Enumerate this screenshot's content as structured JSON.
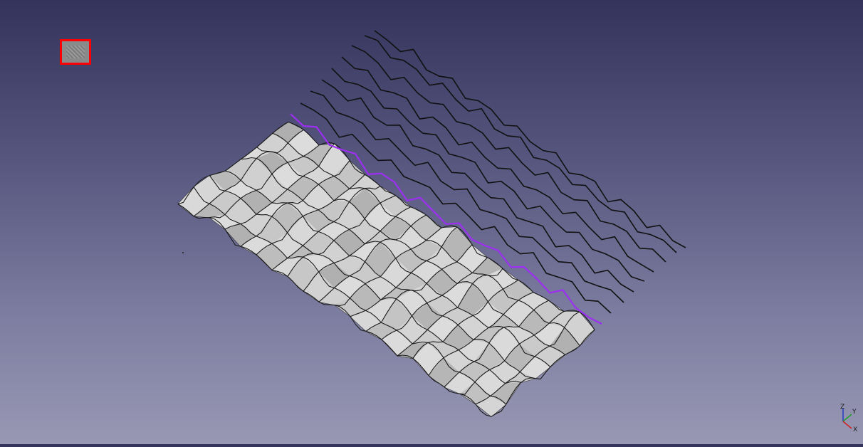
{
  "viewer": {
    "selected_preview": "surface-thumbnail",
    "highlight_color": "#ff0000",
    "selected_curve_color": "#9d2ff3",
    "curve_color": "#111111"
  },
  "axis_labels": {
    "z": "Z",
    "y": "Y",
    "x": "X"
  }
}
